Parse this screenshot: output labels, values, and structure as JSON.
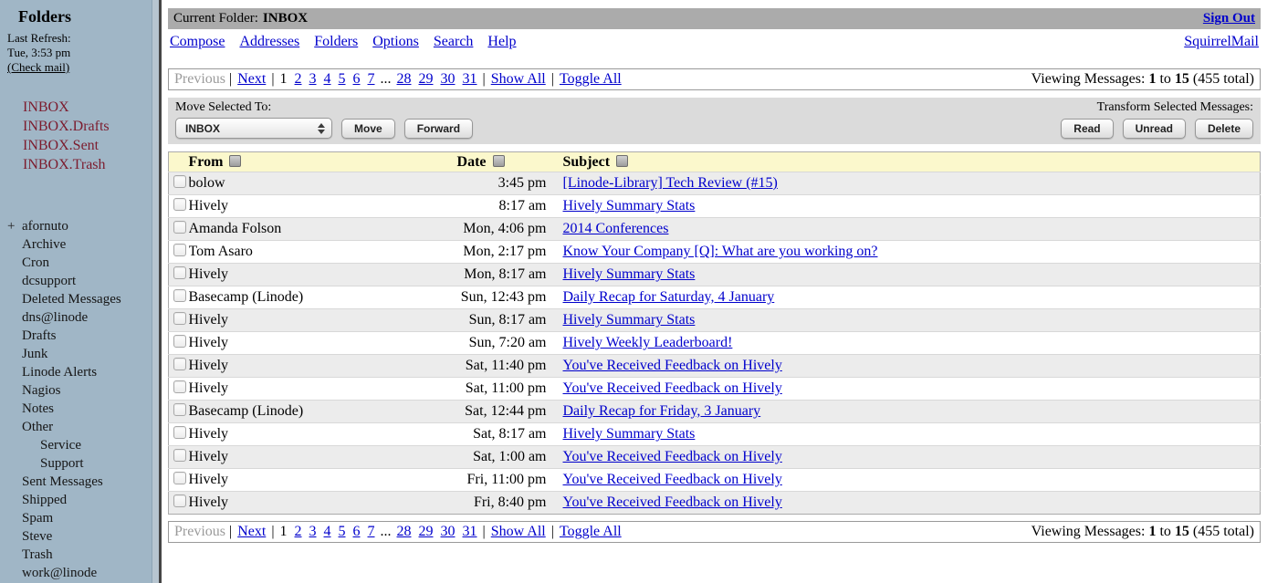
{
  "colors": {
    "sidebar_bg": "#A0B6C6",
    "special_folder": "#7C1C2E",
    "link_blue": "#0000CC",
    "titlebar_gray": "#ABABAB",
    "toolbar_gray": "#DBDBDB",
    "header_yellow": "#FBF8CC",
    "alt_row": "#ECECEC"
  },
  "sidebar": {
    "title": "Folders",
    "last_refresh_label": "Last Refresh:",
    "last_refresh_time": "Tue, 3:53 pm",
    "check_mail": "(Check mail)",
    "special_folders": [
      "INBOX",
      "INBOX.Drafts",
      "INBOX.Sent",
      "INBOX.Trash"
    ],
    "folders": [
      {
        "label": "afornuto",
        "prefix": "+"
      },
      {
        "label": "Archive"
      },
      {
        "label": "Cron"
      },
      {
        "label": "dcsupport"
      },
      {
        "label": "Deleted Messages"
      },
      {
        "label": "dns@linode"
      },
      {
        "label": "Drafts"
      },
      {
        "label": "Junk"
      },
      {
        "label": "Linode Alerts"
      },
      {
        "label": "Nagios"
      },
      {
        "label": "Notes"
      },
      {
        "label": "Other"
      },
      {
        "label": "Service",
        "indent": 1
      },
      {
        "label": "Support",
        "indent": 1
      },
      {
        "label": "Sent Messages"
      },
      {
        "label": "Shipped"
      },
      {
        "label": "Spam"
      },
      {
        "label": "Steve"
      },
      {
        "label": "Trash"
      },
      {
        "label": "work@linode"
      }
    ]
  },
  "header": {
    "current_folder_label": "Current Folder:",
    "current_folder": "INBOX",
    "sign_out": "Sign Out",
    "nav": [
      "Compose",
      "Addresses",
      "Folders",
      "Options",
      "Search",
      "Help"
    ],
    "brand": "SquirrelMail"
  },
  "pagination": {
    "previous": "Previous",
    "next": "Next",
    "current_page": "1",
    "pages_left": [
      "2",
      "3",
      "4",
      "5",
      "6",
      "7"
    ],
    "ellipsis": "...",
    "pages_right": [
      "28",
      "29",
      "30",
      "31"
    ],
    "show_all": "Show All",
    "toggle_all": "Toggle All",
    "viewing": {
      "label": "Viewing Messages:",
      "from": "1",
      "to_word": "to",
      "to": "15",
      "total": "(455 total)"
    }
  },
  "toolbar": {
    "move_label": "Move Selected To:",
    "folder_select_value": "INBOX",
    "move_button": "Move",
    "forward_button": "Forward",
    "transform_label": "Transform Selected Messages:",
    "read_button": "Read",
    "unread_button": "Unread",
    "delete_button": "Delete"
  },
  "message_table": {
    "columns": {
      "from": "From",
      "date": "Date",
      "subject": "Subject"
    },
    "rows": [
      {
        "from": "bolow",
        "date": "3:45 pm",
        "subject": "[Linode-Library] Tech Review (#15)"
      },
      {
        "from": "Hively",
        "date": "8:17 am",
        "subject": "Hively Summary Stats"
      },
      {
        "from": "Amanda Folson",
        "date": "Mon, 4:06 pm",
        "subject": "2014 Conferences"
      },
      {
        "from": "Tom Asaro",
        "date": "Mon, 2:17 pm",
        "subject": "Know Your Company [Q]: What are you working on?"
      },
      {
        "from": "Hively",
        "date": "Mon, 8:17 am",
        "subject": "Hively Summary Stats"
      },
      {
        "from": "Basecamp (Linode)",
        "date": "Sun, 12:43 pm",
        "subject": "Daily Recap for Saturday, 4 January"
      },
      {
        "from": "Hively",
        "date": "Sun, 8:17 am",
        "subject": "Hively Summary Stats"
      },
      {
        "from": "Hively",
        "date": "Sun, 7:20 am",
        "subject": "Hively Weekly Leaderboard!"
      },
      {
        "from": "Hively",
        "date": "Sat, 11:40 pm",
        "subject": "You've Received Feedback on Hively"
      },
      {
        "from": "Hively",
        "date": "Sat, 11:00 pm",
        "subject": "You've Received Feedback on Hively"
      },
      {
        "from": "Basecamp (Linode)",
        "date": "Sat, 12:44 pm",
        "subject": "Daily Recap for Friday, 3 January"
      },
      {
        "from": "Hively",
        "date": "Sat, 8:17 am",
        "subject": "Hively Summary Stats"
      },
      {
        "from": "Hively",
        "date": "Sat, 1:00 am",
        "subject": "You've Received Feedback on Hively"
      },
      {
        "from": "Hively",
        "date": "Fri, 11:00 pm",
        "subject": "You've Received Feedback on Hively"
      },
      {
        "from": "Hively",
        "date": "Fri, 8:40 pm",
        "subject": "You've Received Feedback on Hively"
      }
    ]
  }
}
